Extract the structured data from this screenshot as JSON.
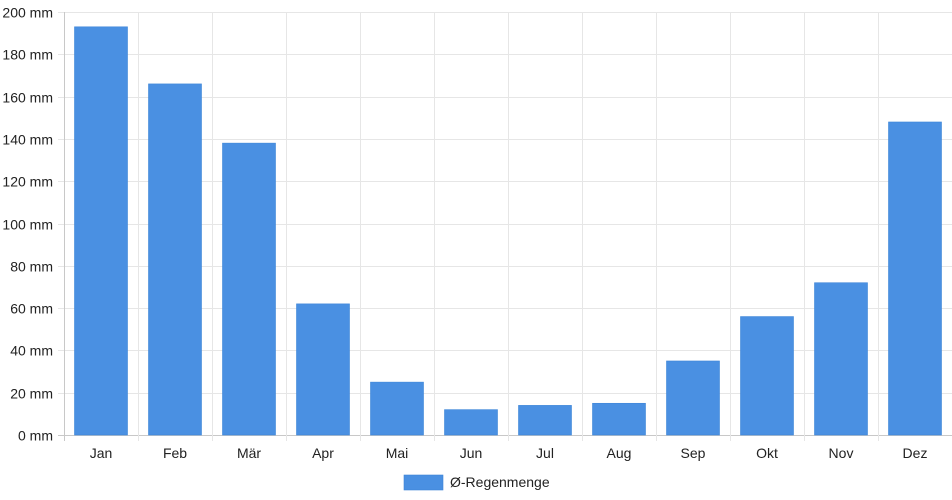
{
  "chart_data": {
    "type": "bar",
    "categories": [
      "Jan",
      "Feb",
      "Mär",
      "Apr",
      "Mai",
      "Jun",
      "Jul",
      "Aug",
      "Sep",
      "Okt",
      "Nov",
      "Dez"
    ],
    "series": [
      {
        "name": "Ø-Regenmenge",
        "values": [
          193,
          166,
          138,
          62,
          25,
          12,
          14,
          15,
          35,
          56,
          72,
          148
        ],
        "color": "#4a90e2"
      }
    ],
    "y_unit": "mm",
    "ylim": [
      0,
      200
    ],
    "y_ticks": [
      0,
      20,
      40,
      60,
      80,
      100,
      120,
      140,
      160,
      180,
      200
    ],
    "grid": true,
    "legend_position": "bottom-center"
  }
}
